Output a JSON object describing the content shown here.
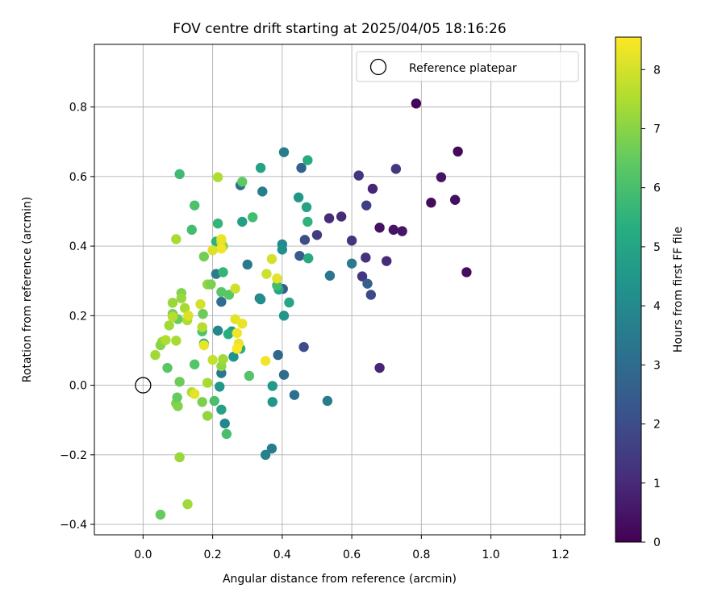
{
  "chart_data": {
    "type": "scatter",
    "title": "FOV centre drift starting at 2025/04/05 18:16:26",
    "xlabel": "Angular distance from reference (arcmin)",
    "ylabel": "Rotation from reference (arcmin)",
    "xlim": [
      -0.14,
      1.27
    ],
    "ylim": [
      -0.43,
      0.98
    ],
    "xticks": [
      0.0,
      0.2,
      0.4,
      0.6,
      0.8,
      1.0,
      1.2
    ],
    "xtick_labels": [
      "0.0",
      "0.2",
      "0.4",
      "0.6",
      "0.8",
      "1.0",
      "1.2"
    ],
    "yticks": [
      -0.4,
      -0.2,
      0.0,
      0.2,
      0.4,
      0.6,
      0.8
    ],
    "ytick_labels": [
      "−0.4",
      "−0.2",
      "0.0",
      "0.2",
      "0.4",
      "0.6",
      "0.8"
    ],
    "grid": true,
    "legend": {
      "placement": "upper right",
      "entries": [
        "Reference platepar"
      ]
    },
    "reference_point": {
      "x": 0.0,
      "y": 0.0,
      "marker": "open-circle"
    },
    "colorbar": {
      "label": "Hours from first FF file",
      "colormap": "viridis",
      "range": [
        0,
        8.55
      ],
      "ticks": [
        0,
        1,
        2,
        3,
        4,
        5,
        6,
        7,
        8
      ],
      "tick_labels": [
        "0",
        "1",
        "2",
        "3",
        "4",
        "5",
        "6",
        "7",
        "8"
      ]
    },
    "points": [
      {
        "x": 0.785,
        "y": 0.81,
        "h": 0.1
      },
      {
        "x": 0.905,
        "y": 0.672,
        "h": 0.2
      },
      {
        "x": 0.93,
        "y": 0.325,
        "h": 0.3
      },
      {
        "x": 0.828,
        "y": 0.525,
        "h": 0.25
      },
      {
        "x": 0.897,
        "y": 0.533,
        "h": 0.35
      },
      {
        "x": 0.857,
        "y": 0.598,
        "h": 0.45
      },
      {
        "x": 0.68,
        "y": 0.453,
        "h": 0.4
      },
      {
        "x": 0.72,
        "y": 0.447,
        "h": 0.45
      },
      {
        "x": 0.745,
        "y": 0.443,
        "h": 0.5
      },
      {
        "x": 0.68,
        "y": 0.05,
        "h": 0.9
      },
      {
        "x": 0.66,
        "y": 0.565,
        "h": 0.9
      },
      {
        "x": 0.7,
        "y": 0.357,
        "h": 1.0
      },
      {
        "x": 0.64,
        "y": 0.367,
        "h": 1.2
      },
      {
        "x": 0.727,
        "y": 0.622,
        "h": 1.4
      },
      {
        "x": 0.62,
        "y": 0.603,
        "h": 1.3
      },
      {
        "x": 0.57,
        "y": 0.485,
        "h": 1.0
      },
      {
        "x": 0.535,
        "y": 0.48,
        "h": 1.05
      },
      {
        "x": 0.6,
        "y": 0.416,
        "h": 1.3
      },
      {
        "x": 0.63,
        "y": 0.313,
        "h": 1.35
      },
      {
        "x": 0.642,
        "y": 0.517,
        "h": 1.6
      },
      {
        "x": 0.655,
        "y": 0.26,
        "h": 1.9
      },
      {
        "x": 0.5,
        "y": 0.432,
        "h": 1.5
      },
      {
        "x": 0.465,
        "y": 0.418,
        "h": 2.0
      },
      {
        "x": 0.462,
        "y": 0.11,
        "h": 2.0
      },
      {
        "x": 0.645,
        "y": 0.292,
        "h": 2.6
      },
      {
        "x": 0.455,
        "y": 0.625,
        "h": 2.7
      },
      {
        "x": 0.45,
        "y": 0.372,
        "h": 2.5
      },
      {
        "x": 0.402,
        "y": 0.277,
        "h": 2.4
      },
      {
        "x": 0.388,
        "y": 0.087,
        "h": 2.8
      },
      {
        "x": 0.405,
        "y": 0.03,
        "h": 3.0
      },
      {
        "x": 0.28,
        "y": 0.575,
        "h": 3.1
      },
      {
        "x": 0.3,
        "y": 0.347,
        "h": 3.4
      },
      {
        "x": 0.435,
        "y": -0.028,
        "h": 3.1
      },
      {
        "x": 0.537,
        "y": 0.315,
        "h": 3.3
      },
      {
        "x": 0.6,
        "y": 0.35,
        "h": 3.5
      },
      {
        "x": 0.53,
        "y": -0.045,
        "h": 3.6
      },
      {
        "x": 0.37,
        "y": -0.182,
        "h": 3.6
      },
      {
        "x": 0.352,
        "y": -0.2,
        "h": 3.7
      },
      {
        "x": 0.405,
        "y": 0.67,
        "h": 3.6
      },
      {
        "x": 0.343,
        "y": 0.557,
        "h": 3.6
      },
      {
        "x": 0.225,
        "y": 0.24,
        "h": 3.0
      },
      {
        "x": 0.21,
        "y": 0.32,
        "h": 3.5
      },
      {
        "x": 0.225,
        "y": 0.035,
        "h": 3.4
      },
      {
        "x": 0.235,
        "y": -0.11,
        "h": 3.9
      },
      {
        "x": 0.215,
        "y": 0.157,
        "h": 3.9
      },
      {
        "x": 0.335,
        "y": 0.25,
        "h": 3.8
      },
      {
        "x": 0.338,
        "y": 0.247,
        "h": 4.1
      },
      {
        "x": 0.4,
        "y": 0.405,
        "h": 4.0
      },
      {
        "x": 0.4,
        "y": 0.39,
        "h": 4.2
      },
      {
        "x": 0.405,
        "y": 0.2,
        "h": 4.4
      },
      {
        "x": 0.372,
        "y": -0.048,
        "h": 4.5
      },
      {
        "x": 0.372,
        "y": -0.002,
        "h": 4.6
      },
      {
        "x": 0.26,
        "y": 0.082,
        "h": 4.3
      },
      {
        "x": 0.255,
        "y": 0.155,
        "h": 4.8
      },
      {
        "x": 0.22,
        "y": -0.004,
        "h": 4.5
      },
      {
        "x": 0.225,
        "y": -0.07,
        "h": 4.9
      },
      {
        "x": 0.285,
        "y": 0.47,
        "h": 4.8
      },
      {
        "x": 0.338,
        "y": 0.625,
        "h": 4.9
      },
      {
        "x": 0.447,
        "y": 0.54,
        "h": 4.5
      },
      {
        "x": 0.47,
        "y": 0.512,
        "h": 4.9
      },
      {
        "x": 0.475,
        "y": 0.365,
        "h": 5.2
      },
      {
        "x": 0.473,
        "y": 0.47,
        "h": 5.5
      },
      {
        "x": 0.473,
        "y": 0.647,
        "h": 5.2
      },
      {
        "x": 0.39,
        "y": 0.275,
        "h": 5.0
      },
      {
        "x": 0.42,
        "y": 0.238,
        "h": 5.1
      },
      {
        "x": 0.28,
        "y": 0.105,
        "h": 5.3
      },
      {
        "x": 0.245,
        "y": 0.147,
        "h": 5.3
      },
      {
        "x": 0.21,
        "y": 0.413,
        "h": 5.5
      },
      {
        "x": 0.215,
        "y": 0.465,
        "h": 5.6
      },
      {
        "x": 0.23,
        "y": 0.325,
        "h": 5.6
      },
      {
        "x": 0.205,
        "y": -0.045,
        "h": 6.0
      },
      {
        "x": 0.24,
        "y": -0.14,
        "h": 6.0
      },
      {
        "x": 0.175,
        "y": 0.12,
        "h": 5.4
      },
      {
        "x": 0.14,
        "y": 0.447,
        "h": 5.9
      },
      {
        "x": 0.148,
        "y": 0.517,
        "h": 6.1
      },
      {
        "x": 0.105,
        "y": 0.607,
        "h": 5.8
      },
      {
        "x": 0.315,
        "y": 0.483,
        "h": 5.9
      },
      {
        "x": 0.385,
        "y": 0.287,
        "h": 5.9
      },
      {
        "x": 0.305,
        "y": 0.027,
        "h": 6.2
      },
      {
        "x": 0.285,
        "y": 0.585,
        "h": 6.4
      },
      {
        "x": 0.247,
        "y": 0.26,
        "h": 6.3
      },
      {
        "x": 0.225,
        "y": 0.268,
        "h": 6.3
      },
      {
        "x": 0.17,
        "y": 0.155,
        "h": 6.1
      },
      {
        "x": 0.148,
        "y": 0.06,
        "h": 6.2
      },
      {
        "x": 0.172,
        "y": 0.205,
        "h": 6.6
      },
      {
        "x": 0.175,
        "y": 0.37,
        "h": 6.7
      },
      {
        "x": 0.23,
        "y": 0.4,
        "h": 6.9
      },
      {
        "x": 0.07,
        "y": 0.05,
        "h": 6.3
      },
      {
        "x": 0.05,
        "y": -0.372,
        "h": 6.5
      },
      {
        "x": 0.105,
        "y": 0.01,
        "h": 6.6
      },
      {
        "x": 0.095,
        "y": -0.052,
        "h": 6.8
      },
      {
        "x": 0.1,
        "y": -0.06,
        "h": 6.9
      },
      {
        "x": 0.098,
        "y": -0.035,
        "h": 6.5
      },
      {
        "x": 0.085,
        "y": 0.205,
        "h": 6.7
      },
      {
        "x": 0.17,
        "y": -0.048,
        "h": 6.8
      },
      {
        "x": 0.185,
        "y": -0.088,
        "h": 7.1
      },
      {
        "x": 0.185,
        "y": 0.29,
        "h": 7.1
      },
      {
        "x": 0.195,
        "y": 0.29,
        "h": 6.8
      },
      {
        "x": 0.11,
        "y": 0.265,
        "h": 6.9
      },
      {
        "x": 0.1,
        "y": 0.19,
        "h": 6.6
      },
      {
        "x": 0.11,
        "y": 0.25,
        "h": 7.2
      },
      {
        "x": 0.12,
        "y": 0.222,
        "h": 7.4
      },
      {
        "x": 0.085,
        "y": 0.237,
        "h": 7.2
      },
      {
        "x": 0.055,
        "y": 0.125,
        "h": 7.2
      },
      {
        "x": 0.05,
        "y": 0.115,
        "h": 7.0
      },
      {
        "x": 0.035,
        "y": 0.087,
        "h": 7.3
      },
      {
        "x": 0.065,
        "y": 0.13,
        "h": 7.5
      },
      {
        "x": 0.075,
        "y": 0.172,
        "h": 7.3
      },
      {
        "x": 0.095,
        "y": 0.128,
        "h": 7.4
      },
      {
        "x": 0.085,
        "y": 0.197,
        "h": 7.6
      },
      {
        "x": 0.127,
        "y": 0.187,
        "h": 7.5
      },
      {
        "x": 0.095,
        "y": 0.42,
        "h": 7.4
      },
      {
        "x": 0.105,
        "y": -0.207,
        "h": 7.2
      },
      {
        "x": 0.128,
        "y": -0.342,
        "h": 7.3
      },
      {
        "x": 0.14,
        "y": -0.02,
        "h": 7.5
      },
      {
        "x": 0.185,
        "y": 0.007,
        "h": 7.4
      },
      {
        "x": 0.225,
        "y": 0.055,
        "h": 7.1
      },
      {
        "x": 0.23,
        "y": 0.075,
        "h": 7.3
      },
      {
        "x": 0.2,
        "y": 0.073,
        "h": 7.8
      },
      {
        "x": 0.215,
        "y": 0.598,
        "h": 7.5
      },
      {
        "x": 0.225,
        "y": 0.41,
        "h": 7.6
      },
      {
        "x": 0.17,
        "y": 0.167,
        "h": 7.6
      },
      {
        "x": 0.265,
        "y": 0.278,
        "h": 7.9
      },
      {
        "x": 0.265,
        "y": 0.19,
        "h": 8.2
      },
      {
        "x": 0.285,
        "y": 0.177,
        "h": 8.3
      },
      {
        "x": 0.27,
        "y": 0.15,
        "h": 8.4
      },
      {
        "x": 0.275,
        "y": 0.12,
        "h": 8.3
      },
      {
        "x": 0.27,
        "y": 0.105,
        "h": 8.5
      },
      {
        "x": 0.225,
        "y": 0.42,
        "h": 8.3
      },
      {
        "x": 0.225,
        "y": 0.393,
        "h": 8.4
      },
      {
        "x": 0.165,
        "y": 0.233,
        "h": 8.0
      },
      {
        "x": 0.13,
        "y": 0.2,
        "h": 8.1
      },
      {
        "x": 0.175,
        "y": 0.115,
        "h": 8.3
      },
      {
        "x": 0.148,
        "y": -0.025,
        "h": 8.2
      },
      {
        "x": 0.2,
        "y": 0.388,
        "h": 8.1
      },
      {
        "x": 0.355,
        "y": 0.32,
        "h": 7.9
      },
      {
        "x": 0.37,
        "y": 0.363,
        "h": 8.0
      },
      {
        "x": 0.385,
        "y": 0.307,
        "h": 8.2
      },
      {
        "x": 0.352,
        "y": 0.07,
        "h": 8.4
      }
    ]
  }
}
